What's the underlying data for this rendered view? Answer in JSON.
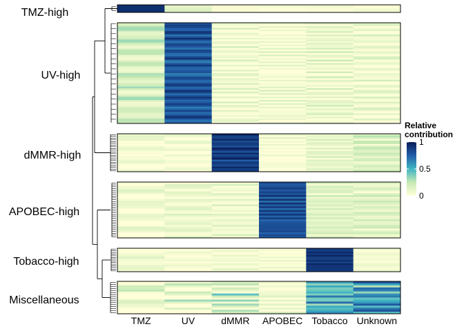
{
  "chart_data": {
    "type": "heatmap",
    "columns": [
      "TMZ",
      "UV",
      "dMMR",
      "APOBEC",
      "Tobacco",
      "Unknown"
    ],
    "groups": [
      {
        "name": "TMZ-high",
        "rows": 2,
        "base": [
          0.93,
          0.12,
          0.03,
          0.02,
          0.02,
          0.02
        ],
        "noise": 0.03,
        "seed": 11
      },
      {
        "name": "UV-high",
        "rows": 60,
        "base": [
          0.18,
          0.78,
          0.06,
          0.04,
          0.08,
          0.07
        ],
        "noise": 0.1,
        "seed": 23
      },
      {
        "name": "dMMR-high",
        "rows": 22,
        "base": [
          0.04,
          0.02,
          0.88,
          0.02,
          0.1,
          0.16
        ],
        "noise": 0.08,
        "seed": 37
      },
      {
        "name": "APOBEC-high",
        "rows": 30,
        "base": [
          0.05,
          0.08,
          0.07,
          0.8,
          0.14,
          0.14
        ],
        "noise": 0.08,
        "seed": 41
      },
      {
        "name": "Tobacco-high",
        "rows": 14,
        "base": [
          0.07,
          0.03,
          0.05,
          0.03,
          0.9,
          0.05
        ],
        "noise": 0.05,
        "seed": 53
      },
      {
        "name": "Miscellaneous",
        "rows": 16,
        "base": [
          0.05,
          0.04,
          0.2,
          0.04,
          0.45,
          0.58
        ],
        "noise": 0.18,
        "seed": 67
      }
    ],
    "color_scale": {
      "stops": [
        0,
        0.25,
        0.5,
        0.75,
        1
      ],
      "colors": [
        "#ffffd9",
        "#c7e9b4",
        "#41b6c4",
        "#225ea8",
        "#081d58"
      ],
      "domain": [
        0,
        1
      ]
    },
    "legend": {
      "title_lines": [
        "Relative",
        "contribution"
      ],
      "ticks": [
        "1",
        "0.5",
        "0"
      ],
      "tick_values": [
        1,
        0.5,
        0
      ],
      "placement": "right"
    }
  }
}
